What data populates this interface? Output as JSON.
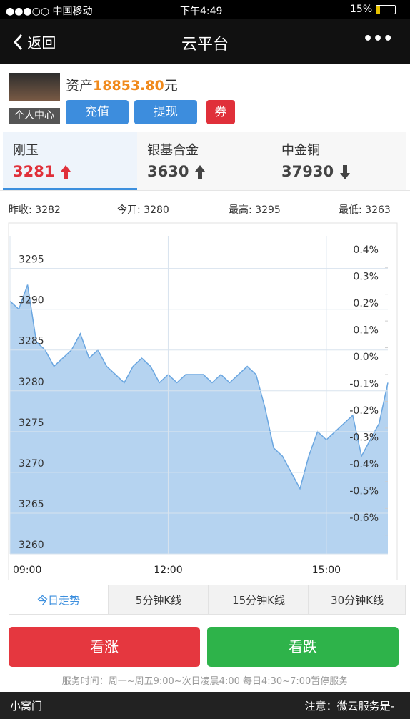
{
  "status_bar": {
    "carrier": "●●●○○ 中国移动",
    "time": "下午4:49",
    "battery": "15%"
  },
  "nav": {
    "back": "返回",
    "title": "云平台",
    "more": "•••"
  },
  "account": {
    "profile": "个人中心",
    "asset_label": "资产",
    "asset_value": "18853.80",
    "asset_unit": "元",
    "buttons": [
      "充值",
      "提现",
      "券"
    ]
  },
  "tabs": [
    {
      "name": "刚玉",
      "price": 3281,
      "trend": "up",
      "color": "#e0303a"
    },
    {
      "name": "银基合金",
      "price": 3630,
      "trend": "up",
      "color": "#444444"
    },
    {
      "name": "中金铜",
      "price": 37930,
      "trend": "down",
      "color": "#444444"
    }
  ],
  "stats": [
    {
      "label": "昨收:",
      "value": 3282
    },
    {
      "label": "今开:",
      "value": 3280
    },
    {
      "label": "最高:",
      "value": 3295
    },
    {
      "label": "最低:",
      "value": 3263
    }
  ],
  "chart_data": {
    "type": "area",
    "color": "#b5d3f0",
    "line_color": "#6aa6e0",
    "x": [
      0,
      10,
      20,
      30,
      40,
      50,
      60,
      70,
      80,
      90,
      100,
      110,
      120,
      130,
      140,
      150,
      160,
      170,
      180,
      190,
      200,
      210,
      220,
      230,
      240,
      250,
      260,
      270,
      280,
      290,
      300,
      310,
      320,
      330,
      340,
      350,
      360,
      370,
      380,
      390,
      400,
      410,
      420,
      430
    ],
    "values": [
      3291,
      3290,
      3293,
      3286,
      3285,
      3283,
      3284,
      3285,
      3287,
      3284,
      3285,
      3283,
      3282,
      3281,
      3283,
      3284,
      3283,
      3281,
      3282,
      3281,
      3282,
      3282,
      3282,
      3281,
      3282,
      3281,
      3282,
      3283,
      3282,
      3278,
      3273,
      3272,
      3270,
      3268,
      3272,
      3275,
      3274,
      3275,
      3276,
      3277,
      3272,
      3274,
      3276,
      3281
    ],
    "xlim": [
      0,
      430
    ],
    "xticks": [
      {
        "value": 0,
        "label": "09:00"
      },
      {
        "value": 180,
        "label": "12:00"
      },
      {
        "value": 360,
        "label": "15:00"
      }
    ],
    "ylim": [
      3260,
      3299
    ],
    "yticks": [
      3295,
      3290,
      3285,
      3280,
      3275,
      3270,
      3265,
      3260
    ],
    "y2lim": [
      -0.67,
      0.518
    ],
    "y2ticks": [
      {
        "value": 0.4,
        "label": "0.4%"
      },
      {
        "value": 0.3,
        "label": "0.3%"
      },
      {
        "value": 0.2,
        "label": "0.2%"
      },
      {
        "value": 0.1,
        "label": "0.1%"
      },
      {
        "value": 0.0,
        "label": "0.0%"
      },
      {
        "value": -0.1,
        "label": "-0.1%"
      },
      {
        "value": -0.2,
        "label": "-0.2%"
      },
      {
        "value": -0.3,
        "label": "-0.3%"
      },
      {
        "value": -0.4,
        "label": "-0.4%"
      },
      {
        "value": -0.5,
        "label": "-0.5%"
      },
      {
        "value": -0.6,
        "label": "-0.6%"
      }
    ],
    "grid": true
  },
  "periods": [
    "今日走势",
    "5分钟K线",
    "15分钟K线",
    "30分钟K线"
  ],
  "actions": [
    "看涨",
    "看跌"
  ],
  "service_hours": "服务时间：周一~周五9:00~次日凌晨4:00 每日4:30~7:00暂停服务",
  "footer": {
    "left": "小窝门",
    "right": "注意：微云服务是-"
  }
}
